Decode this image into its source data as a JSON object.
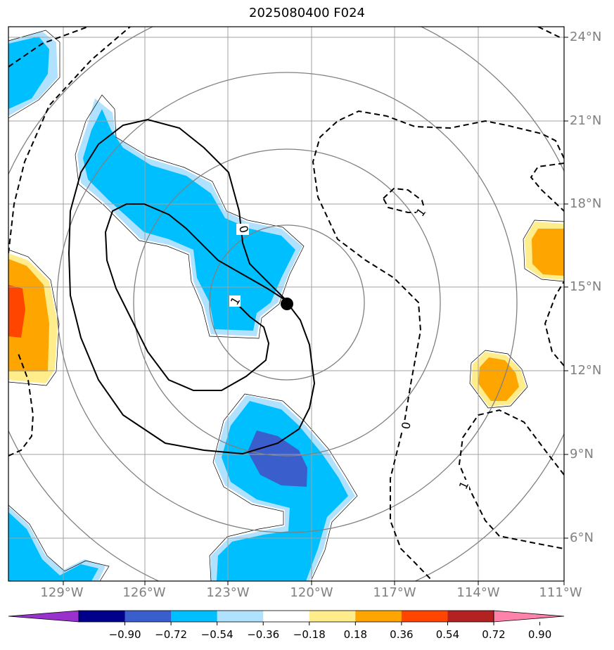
{
  "title": "2025080400 F024",
  "lat_labels": [
    "24°N",
    "21°N",
    "18°N",
    "15°N",
    "12°N",
    "9°N",
    "6°N"
  ],
  "lon_labels": [
    "129°W",
    "126°W",
    "123°W",
    "120°W",
    "117°W",
    "114°W",
    "111°W"
  ],
  "contour_labels": {
    "solid_0": "0",
    "solid_1": "1",
    "dashed_0": "0",
    "dashed_1_top": "1",
    "dashed_1_bottom": "1"
  },
  "colorbar": {
    "ticks": [
      "−0.90",
      "−0.72",
      "−0.54",
      "−0.36",
      "−0.18",
      "0.18",
      "0.36",
      "0.54",
      "0.72",
      "0.90"
    ],
    "colors": [
      "#9932cc",
      "#00008b",
      "#3a5fcd",
      "#00bfff",
      "#b0e2ff",
      "#ffffff",
      "#ffec8b",
      "#ffa500",
      "#ff4500",
      "#b22222",
      "#ff82ab"
    ]
  },
  "map_data": {
    "center_marker": {
      "lon": -120.9,
      "lat": 14.4
    },
    "extent": {
      "lon": [
        -131,
        -111
      ],
      "lat": [
        4.5,
        24.5
      ]
    }
  }
}
